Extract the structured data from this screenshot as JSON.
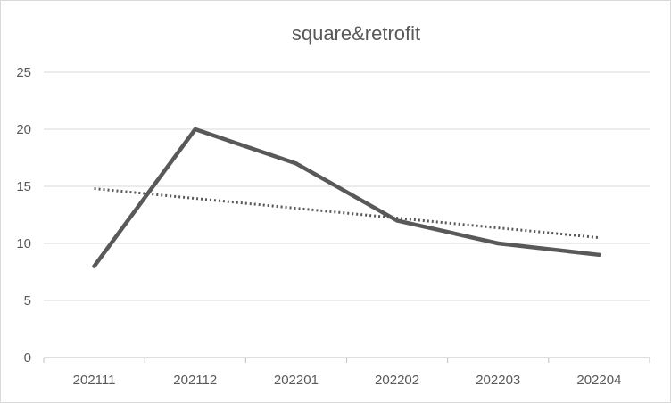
{
  "chart_data": {
    "type": "line",
    "title": "square&retrofit",
    "categories": [
      "202111",
      "202112",
      "202201",
      "202202",
      "202203",
      "202204"
    ],
    "series": [
      {
        "values": [
          8,
          20,
          17,
          12,
          10,
          9
        ],
        "color": "#595959",
        "style": "solid"
      }
    ],
    "trendline": {
      "type": "linear",
      "style": "dotted",
      "color": "#595959",
      "start_value": 14.8,
      "end_value": 10.5
    },
    "xlabel": "",
    "ylabel": "",
    "ylim": [
      0,
      25
    ],
    "yticks": [
      0,
      5,
      10,
      15,
      20,
      25
    ],
    "grid": true,
    "legend": "none"
  }
}
